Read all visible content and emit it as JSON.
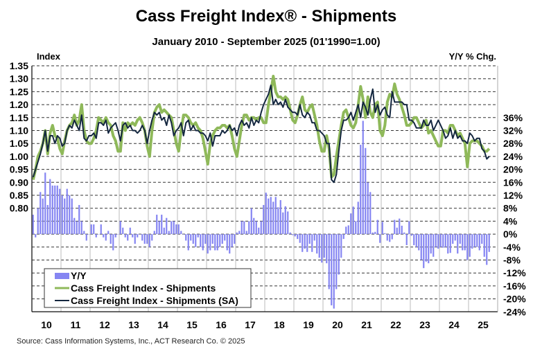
{
  "chart_data": {
    "type": "line",
    "title": "Cass Freight Index® - Shipments",
    "subtitle": "January 2010 - September 2025 (01'1990=1.00)",
    "ylabel_left": "Index",
    "ylabel_right": "Y/Y % Chg.",
    "ylim_left": [
      0.4,
      1.35
    ],
    "ylim_right": [
      -24,
      52
    ],
    "left_ticks": [
      "1.35",
      "1.30",
      "1.25",
      "1.20",
      "1.15",
      "1.10",
      "1.05",
      "1.00",
      "0.95",
      "0.90",
      "0.85",
      "0.80"
    ],
    "right_ticks": [
      "36%",
      "32%",
      "28%",
      "24%",
      "20%",
      "16%",
      "12%",
      "8%",
      "4%",
      "0%",
      "-4%",
      "-8%",
      "-12%",
      "-16%",
      "-20%",
      "-24%"
    ],
    "x_tick_labels": [
      "10",
      "11",
      "12",
      "13",
      "14",
      "15",
      "16",
      "17",
      "18",
      "19",
      "20",
      "21",
      "22",
      "23",
      "24",
      "25"
    ],
    "x_range": [
      "2010-01",
      "2025-09"
    ],
    "frequency": "monthly",
    "grid": true,
    "legend_placement": "bottom-left",
    "source": "Source: Cass Information Systems, Inc., ACT Research Co. © 2025",
    "colors": {
      "yy": "#8585f2",
      "nsa": "#8fb95a",
      "sa": "#13263f"
    },
    "series": [
      {
        "name": "Y/Y",
        "type": "bar",
        "axis": "right",
        "values": [
          6,
          -1,
          8,
          13,
          11,
          19,
          9,
          17,
          15,
          15,
          15,
          14,
          12,
          11,
          14,
          12,
          11,
          5,
          4,
          9,
          4,
          1,
          -2,
          0,
          3,
          3,
          -1,
          0,
          3,
          -1,
          -2,
          1,
          -3,
          -5,
          -1,
          0,
          4,
          2,
          -1,
          -2,
          2,
          -1,
          -3,
          -1,
          0,
          -2,
          -3,
          -3,
          -4,
          -2,
          1,
          6,
          4,
          6,
          2,
          5,
          1,
          4,
          4,
          3,
          3,
          1,
          0,
          -2,
          -5,
          -2,
          -3,
          -4,
          -1,
          -4,
          -5,
          -3,
          -6,
          -5,
          -3,
          -5,
          -5,
          -4,
          -3,
          -2,
          -5,
          -6,
          -4,
          -3,
          0.5,
          1,
          4,
          4,
          1,
          4,
          8,
          5,
          4,
          2,
          4,
          9,
          12.8,
          11,
          11.5,
          10,
          11.5,
          8.3,
          10.5,
          6.7,
          8.6,
          7,
          0.5,
          -0.3,
          -0.7,
          -1.5,
          -2.7,
          -5.5,
          -4.5,
          -5.5,
          -3,
          -5.5,
          -2,
          -6,
          -7.3,
          -8.8,
          -7.3,
          -9,
          -17,
          -22,
          -23,
          -17,
          -12.5,
          -7.3,
          -1.5,
          2.3,
          2.7,
          6.4,
          8.5,
          4,
          10,
          27.6,
          35,
          26.6,
          16,
          13,
          0.5,
          0.7,
          4.4,
          -2.7,
          3.8,
          0.3,
          -2,
          -2.4,
          -1.6,
          4.4,
          2,
          4.8,
          2.6,
          0.5,
          -3.4,
          4,
          -0.5,
          -3.4,
          -4,
          -5,
          -8,
          -10.5,
          -8.5,
          -9,
          -6,
          -7,
          -4,
          -4.5,
          -4,
          -4.2,
          -4,
          -6,
          -5.8,
          -3,
          -2,
          -6,
          -3,
          -5,
          -5,
          -8,
          -7,
          -4.5,
          -4,
          -4,
          -5,
          -3,
          -7,
          -9.5,
          -5.5
        ]
      },
      {
        "name": "Cass Freight Index - Shipments",
        "type": "line",
        "axis": "left",
        "values": [
          0.91,
          0.95,
          1.0,
          1.02,
          1.05,
          1.1,
          1.01,
          1.09,
          1.12,
          1.08,
          1.07,
          1.03,
          1.01,
          1.06,
          1.1,
          1.12,
          1.13,
          1.16,
          1.12,
          1.14,
          1.2,
          1.1,
          1.06,
          1.05,
          1.05,
          1.07,
          1.1,
          1.15,
          1.14,
          1.13,
          1.15,
          1.13,
          1.12,
          1.08,
          1.06,
          1.02,
          1.02,
          1.13,
          1.1,
          1.13,
          1.12,
          1.13,
          1.12,
          1.14,
          1.15,
          1.13,
          1.1,
          1.04,
          1.0,
          1.1,
          1.17,
          1.19,
          1.2,
          1.17,
          1.18,
          1.17,
          1.16,
          1.15,
          1.1,
          1.05,
          1.02,
          1.1,
          1.16,
          1.16,
          1.15,
          1.13,
          1.12,
          1.13,
          1.11,
          1.1,
          1.07,
          1.02,
          0.97,
          1.05,
          1.08,
          1.1,
          1.11,
          1.11,
          1.12,
          1.12,
          1.11,
          1.12,
          1.08,
          1.03,
          1.0,
          1.06,
          1.12,
          1.16,
          1.16,
          1.14,
          1.15,
          1.15,
          1.14,
          1.15,
          1.15,
          1.13,
          1.13,
          1.2,
          1.25,
          1.31,
          1.25,
          1.23,
          1.23,
          1.22,
          1.23,
          1.22,
          1.18,
          1.14,
          1.13,
          1.16,
          1.2,
          1.23,
          1.18,
          1.17,
          1.19,
          1.2,
          1.16,
          1.12,
          1.06,
          1.02,
          1.02,
          1.08,
          1.03,
          0.92,
          0.93,
          1.0,
          1.06,
          1.12,
          1.17,
          1.18,
          1.15,
          1.12,
          1.11,
          1.13,
          1.2,
          1.27,
          1.22,
          1.15,
          1.23,
          1.17,
          1.15,
          1.2,
          1.21,
          1.1,
          1.08,
          1.12,
          1.21,
          1.24,
          1.23,
          1.28,
          1.24,
          1.22,
          1.19,
          1.16,
          1.12,
          1.12,
          1.13,
          1.15,
          1.15,
          1.13,
          1.11,
          1.12,
          1.14,
          1.09,
          1.1,
          1.08,
          1.06,
          1.04,
          1.04,
          1.1,
          1.1,
          1.09,
          1.12,
          1.12,
          1.1,
          1.08,
          1.09,
          1.07,
          1.05,
          0.96,
          1.05,
          1.06,
          1.06,
          1.06,
          1.05,
          1.04,
          1.02,
          1.02,
          1.03
        ]
      },
      {
        "name": "Cass Freight Index - Shipments (SA)",
        "type": "line",
        "axis": "left",
        "values": [
          0.92,
          0.95,
          0.98,
          1.01,
          1.05,
          1.1,
          1.02,
          1.08,
          1.08,
          1.05,
          1.08,
          1.07,
          1.04,
          1.05,
          1.1,
          1.12,
          1.11,
          1.14,
          1.12,
          1.1,
          1.16,
          1.07,
          1.06,
          1.08,
          1.08,
          1.09,
          1.07,
          1.13,
          1.13,
          1.12,
          1.14,
          1.09,
          1.11,
          1.12,
          1.13,
          1.1,
          1.06,
          1.12,
          1.13,
          1.11,
          1.12,
          1.1,
          1.1,
          1.09,
          1.1,
          1.12,
          1.1,
          1.05,
          1.1,
          1.14,
          1.17,
          1.16,
          1.17,
          1.14,
          1.15,
          1.12,
          1.16,
          1.13,
          1.08,
          1.1,
          1.11,
          1.13,
          1.08,
          1.13,
          1.14,
          1.1,
          1.12,
          1.1,
          1.1,
          1.09,
          1.09,
          1.08,
          1.06,
          1.09,
          1.04,
          1.08,
          1.08,
          1.08,
          1.1,
          1.09,
          1.1,
          1.12,
          1.1,
          1.11,
          1.08,
          1.12,
          1.14,
          1.12,
          1.13,
          1.11,
          1.15,
          1.12,
          1.14,
          1.13,
          1.17,
          1.2,
          1.22,
          1.24,
          1.275,
          1.2,
          1.22,
          1.2,
          1.21,
          1.19,
          1.22,
          1.19,
          1.18,
          1.17,
          1.17,
          1.16,
          1.2,
          1.16,
          1.15,
          1.17,
          1.16,
          1.13,
          1.13,
          1.1,
          1.1,
          1.09,
          1.08,
          1.05,
          1.05,
          0.91,
          0.9,
          0.93,
          1.02,
          1.1,
          1.14,
          1.14,
          1.15,
          1.17,
          1.14,
          1.17,
          1.2,
          1.15,
          1.21,
          1.19,
          1.16,
          1.22,
          1.26,
          1.17,
          1.2,
          1.16,
          1.18,
          1.19,
          1.16,
          1.15,
          1.25,
          1.21,
          1.21,
          1.21,
          1.21,
          1.2,
          1.2,
          1.14,
          1.14,
          1.13,
          1.11,
          1.11,
          1.11,
          1.14,
          1.12,
          1.12,
          1.14,
          1.1,
          1.12,
          1.14,
          1.12,
          1.1,
          1.07,
          1.08,
          1.11,
          1.07,
          1.1,
          1.07,
          1.08,
          1.06,
          1.06,
          1.05,
          1.09,
          1.08,
          1.06,
          1.07,
          1.07,
          1.03,
          1.02,
          0.99,
          1.0
        ]
      }
    ]
  }
}
